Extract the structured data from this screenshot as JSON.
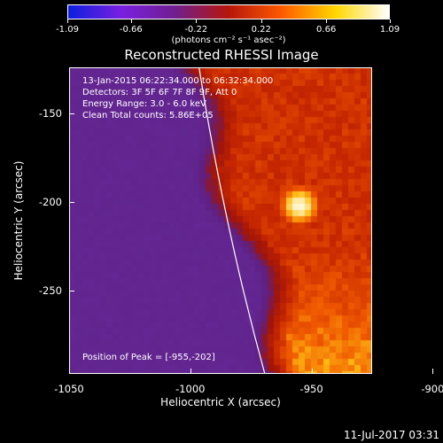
{
  "colorbar": {
    "ticks": [
      "-1.09",
      "-0.66",
      "-0.22",
      "0.22",
      "0.66",
      "1.09"
    ],
    "tick_values": [
      -1.09,
      -0.66,
      -0.22,
      0.22,
      0.66,
      1.09
    ],
    "unit": "(photons cm⁻² s⁻¹ asec⁻²)",
    "colors": [
      "#0b1fe0",
      "#7a1fe0",
      "#6f1f8f",
      "#b5160a",
      "#ff5a00",
      "#ffd700",
      "#ffffff"
    ]
  },
  "plot": {
    "title": "Reconstructed RHESSI Image",
    "info_lines": [
      "13-Jan-2015 06:22:34.000 to 06:32:34.000",
      "Detectors: 3F 5F 6F 7F 8F 9F, Att 0",
      "Energy Range: 3.0 - 6.0 keV",
      "Clean    Total counts: 5.86E+05"
    ],
    "peak_label": "Position of Peak = [-955,-202]",
    "xlabel": "Heliocentric X (arcsec)",
    "ylabel": "Heliocentric Y (arcsec)",
    "x_ticks": [
      "-1050",
      "-1000",
      "-950",
      "-900"
    ],
    "x_tick_values": [
      -1050,
      -1000,
      -950,
      -900
    ],
    "y_ticks": [
      "-150",
      "-200",
      "-250"
    ],
    "y_tick_values": [
      -150,
      -200,
      -250
    ],
    "xlim": [
      -1050,
      -925
    ],
    "ylim": [
      -297,
      -124
    ],
    "peak": [
      -955,
      -202
    ]
  },
  "timestamp": "11-Jul-2017 03:31"
}
